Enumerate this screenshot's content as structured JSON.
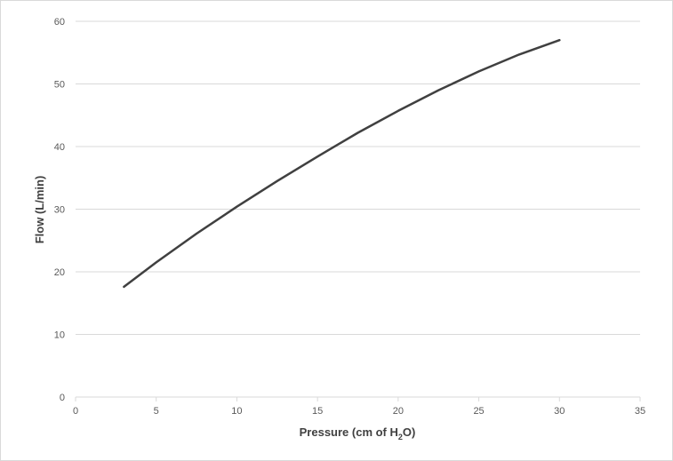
{
  "chart_data": {
    "type": "line",
    "title": "",
    "xlabel": "Pressure (cm of H",
    "xlabel_subscript": "2",
    "xlabel_suffix": "O)",
    "ylabel": "Flow (L/min)",
    "xlim": [
      0,
      35
    ],
    "ylim": [
      0,
      60
    ],
    "x_ticks": [
      0,
      5,
      10,
      15,
      20,
      25,
      30,
      35
    ],
    "y_ticks": [
      0,
      10,
      20,
      30,
      40,
      50,
      60
    ],
    "grid": "horizontal",
    "legend": "none",
    "line_color": "#404040",
    "grid_color": "#d9d9d9",
    "series": [
      {
        "x": [
          3,
          5,
          7.5,
          10,
          12.5,
          15,
          17.5,
          20,
          22.5,
          25,
          27.5,
          30
        ],
        "y": [
          17.6,
          21.5,
          26.1,
          30.4,
          34.5,
          38.4,
          42.2,
          45.7,
          49.0,
          52.0,
          54.7,
          57.0
        ]
      }
    ]
  }
}
